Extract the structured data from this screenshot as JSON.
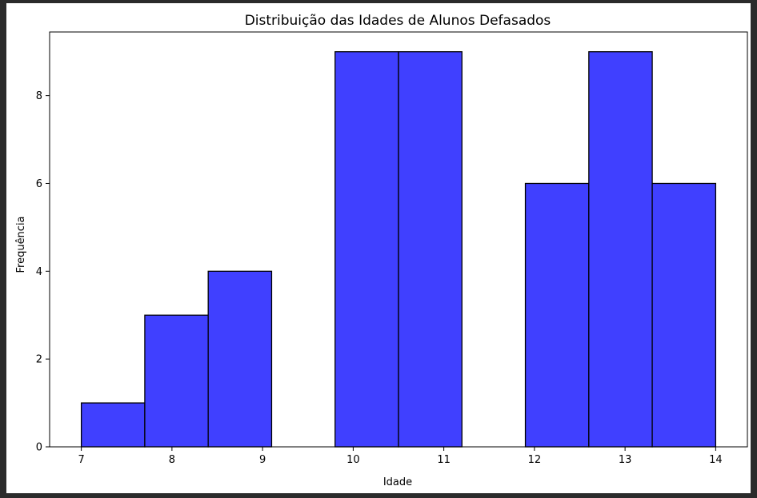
{
  "chart_data": {
    "type": "bar",
    "title": "Distribuição das Idades de Alunos Defasados",
    "xlabel": "Idade",
    "ylabel": "Frequência",
    "xlim": [
      6.65,
      14.35
    ],
    "ylim": [
      0,
      9.45
    ],
    "xticks": [
      7,
      8,
      9,
      10,
      11,
      12,
      13,
      14
    ],
    "yticks": [
      0,
      2,
      4,
      6,
      8
    ],
    "bins": [
      {
        "start": 7.0,
        "end": 7.7,
        "value": 1
      },
      {
        "start": 7.7,
        "end": 8.4,
        "value": 3
      },
      {
        "start": 8.4,
        "end": 9.1,
        "value": 4
      },
      {
        "start": 9.1,
        "end": 9.8,
        "value": 0
      },
      {
        "start": 9.8,
        "end": 10.5,
        "value": 9
      },
      {
        "start": 10.5,
        "end": 11.2,
        "value": 9
      },
      {
        "start": 11.2,
        "end": 11.9,
        "value": 0
      },
      {
        "start": 11.9,
        "end": 12.6,
        "value": 6
      },
      {
        "start": 12.6,
        "end": 13.3,
        "value": 9
      },
      {
        "start": 13.3,
        "end": 14.0,
        "value": 6
      }
    ],
    "bar_color": "#4040ff",
    "edge_color": "#000000",
    "grid": false,
    "legend": false
  }
}
